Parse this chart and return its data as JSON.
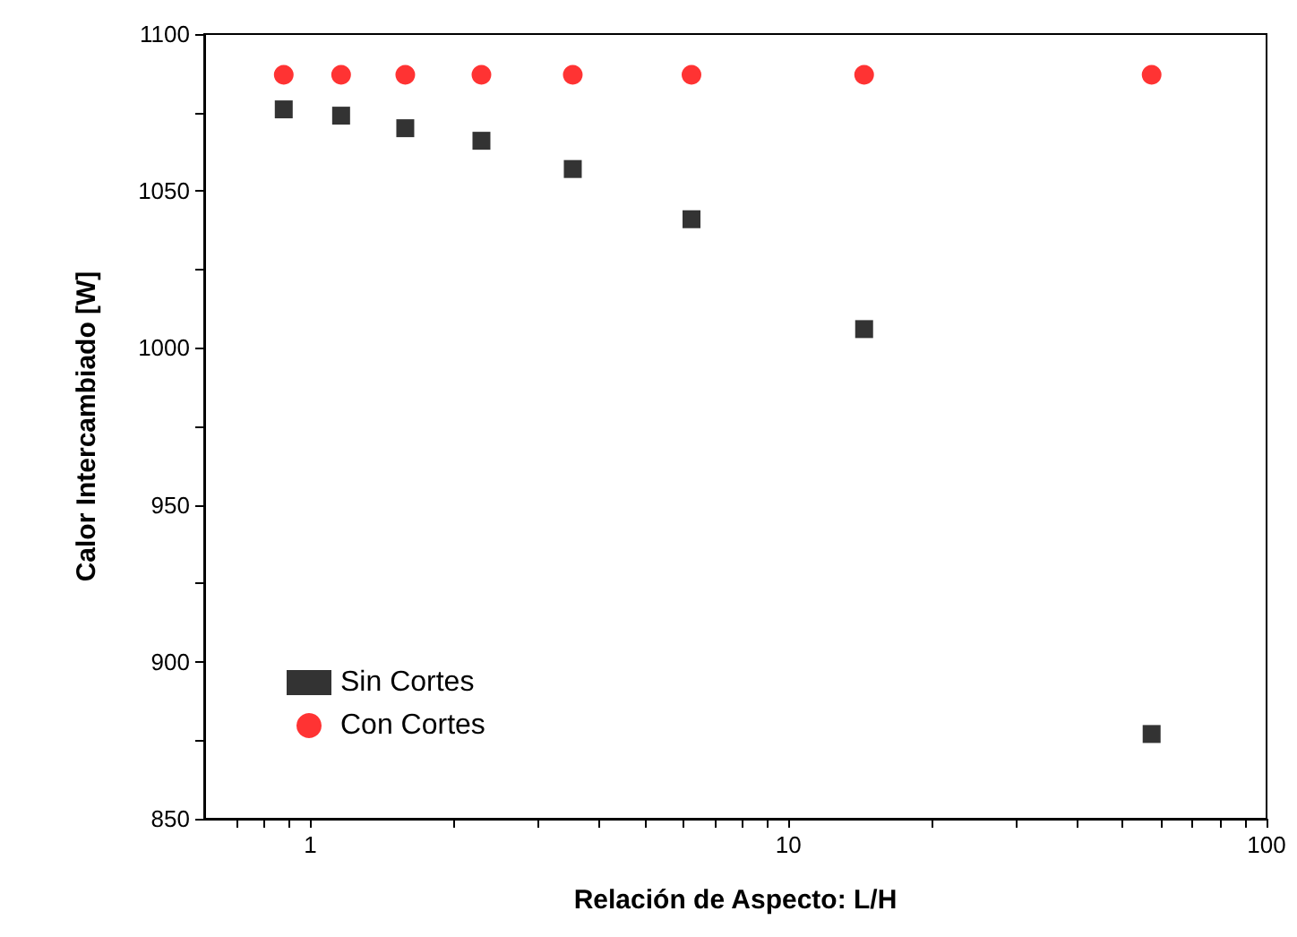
{
  "chart_data": {
    "type": "scatter",
    "xlabel": "Relación de Aspecto: L/H",
    "ylabel": "Calor Intercambiado [W]",
    "log": "x",
    "grid": false,
    "legend": "bottom left",
    "xlim": [
      0.6,
      100
    ],
    "ylim": [
      850,
      1100
    ],
    "xticks": [
      {
        "value": 0.7,
        "label": null
      },
      {
        "value": 0.8,
        "label": null
      },
      {
        "value": 0.9,
        "label": null
      },
      1,
      {
        "value": 2,
        "label": null
      },
      {
        "value": 3,
        "label": null
      },
      {
        "value": 4,
        "label": null
      },
      {
        "value": 5,
        "label": null
      },
      {
        "value": 6,
        "label": null
      },
      {
        "value": 7,
        "label": null
      },
      {
        "value": 8,
        "label": null
      },
      {
        "value": 9,
        "label": null
      },
      10,
      {
        "value": 20,
        "label": null
      },
      {
        "value": 30,
        "label": null
      },
      {
        "value": 40,
        "label": null
      },
      {
        "value": 50,
        "label": null
      },
      {
        "value": 60,
        "label": null
      },
      {
        "value": 70,
        "label": null
      },
      {
        "value": 80,
        "label": null
      },
      {
        "value": 90,
        "label": null
      },
      100
    ],
    "yticks": [
      850,
      {
        "value": 875,
        "label": null
      },
      900,
      {
        "value": 925,
        "label": null
      },
      950,
      {
        "value": 975,
        "label": null
      },
      1000,
      {
        "value": 1025,
        "label": null
      },
      1050,
      {
        "value": 1075,
        "label": null
      },
      1100
    ],
    "x": [
      0.88,
      1.16,
      1.58,
      2.28,
      3.54,
      6.27,
      14.4,
      57.5
    ],
    "series": [
      {
        "name": "Sin Cortes",
        "color": "#000000",
        "marker": "square",
        "values": [
          1076,
          1074,
          1070,
          1066,
          1057,
          1041,
          1006,
          877
        ]
      },
      {
        "name": "Con Cortes",
        "color": "#ff0000",
        "marker": "circle",
        "values": [
          1087,
          1087,
          1087,
          1087,
          1087,
          1087,
          1087,
          1087
        ]
      }
    ]
  }
}
